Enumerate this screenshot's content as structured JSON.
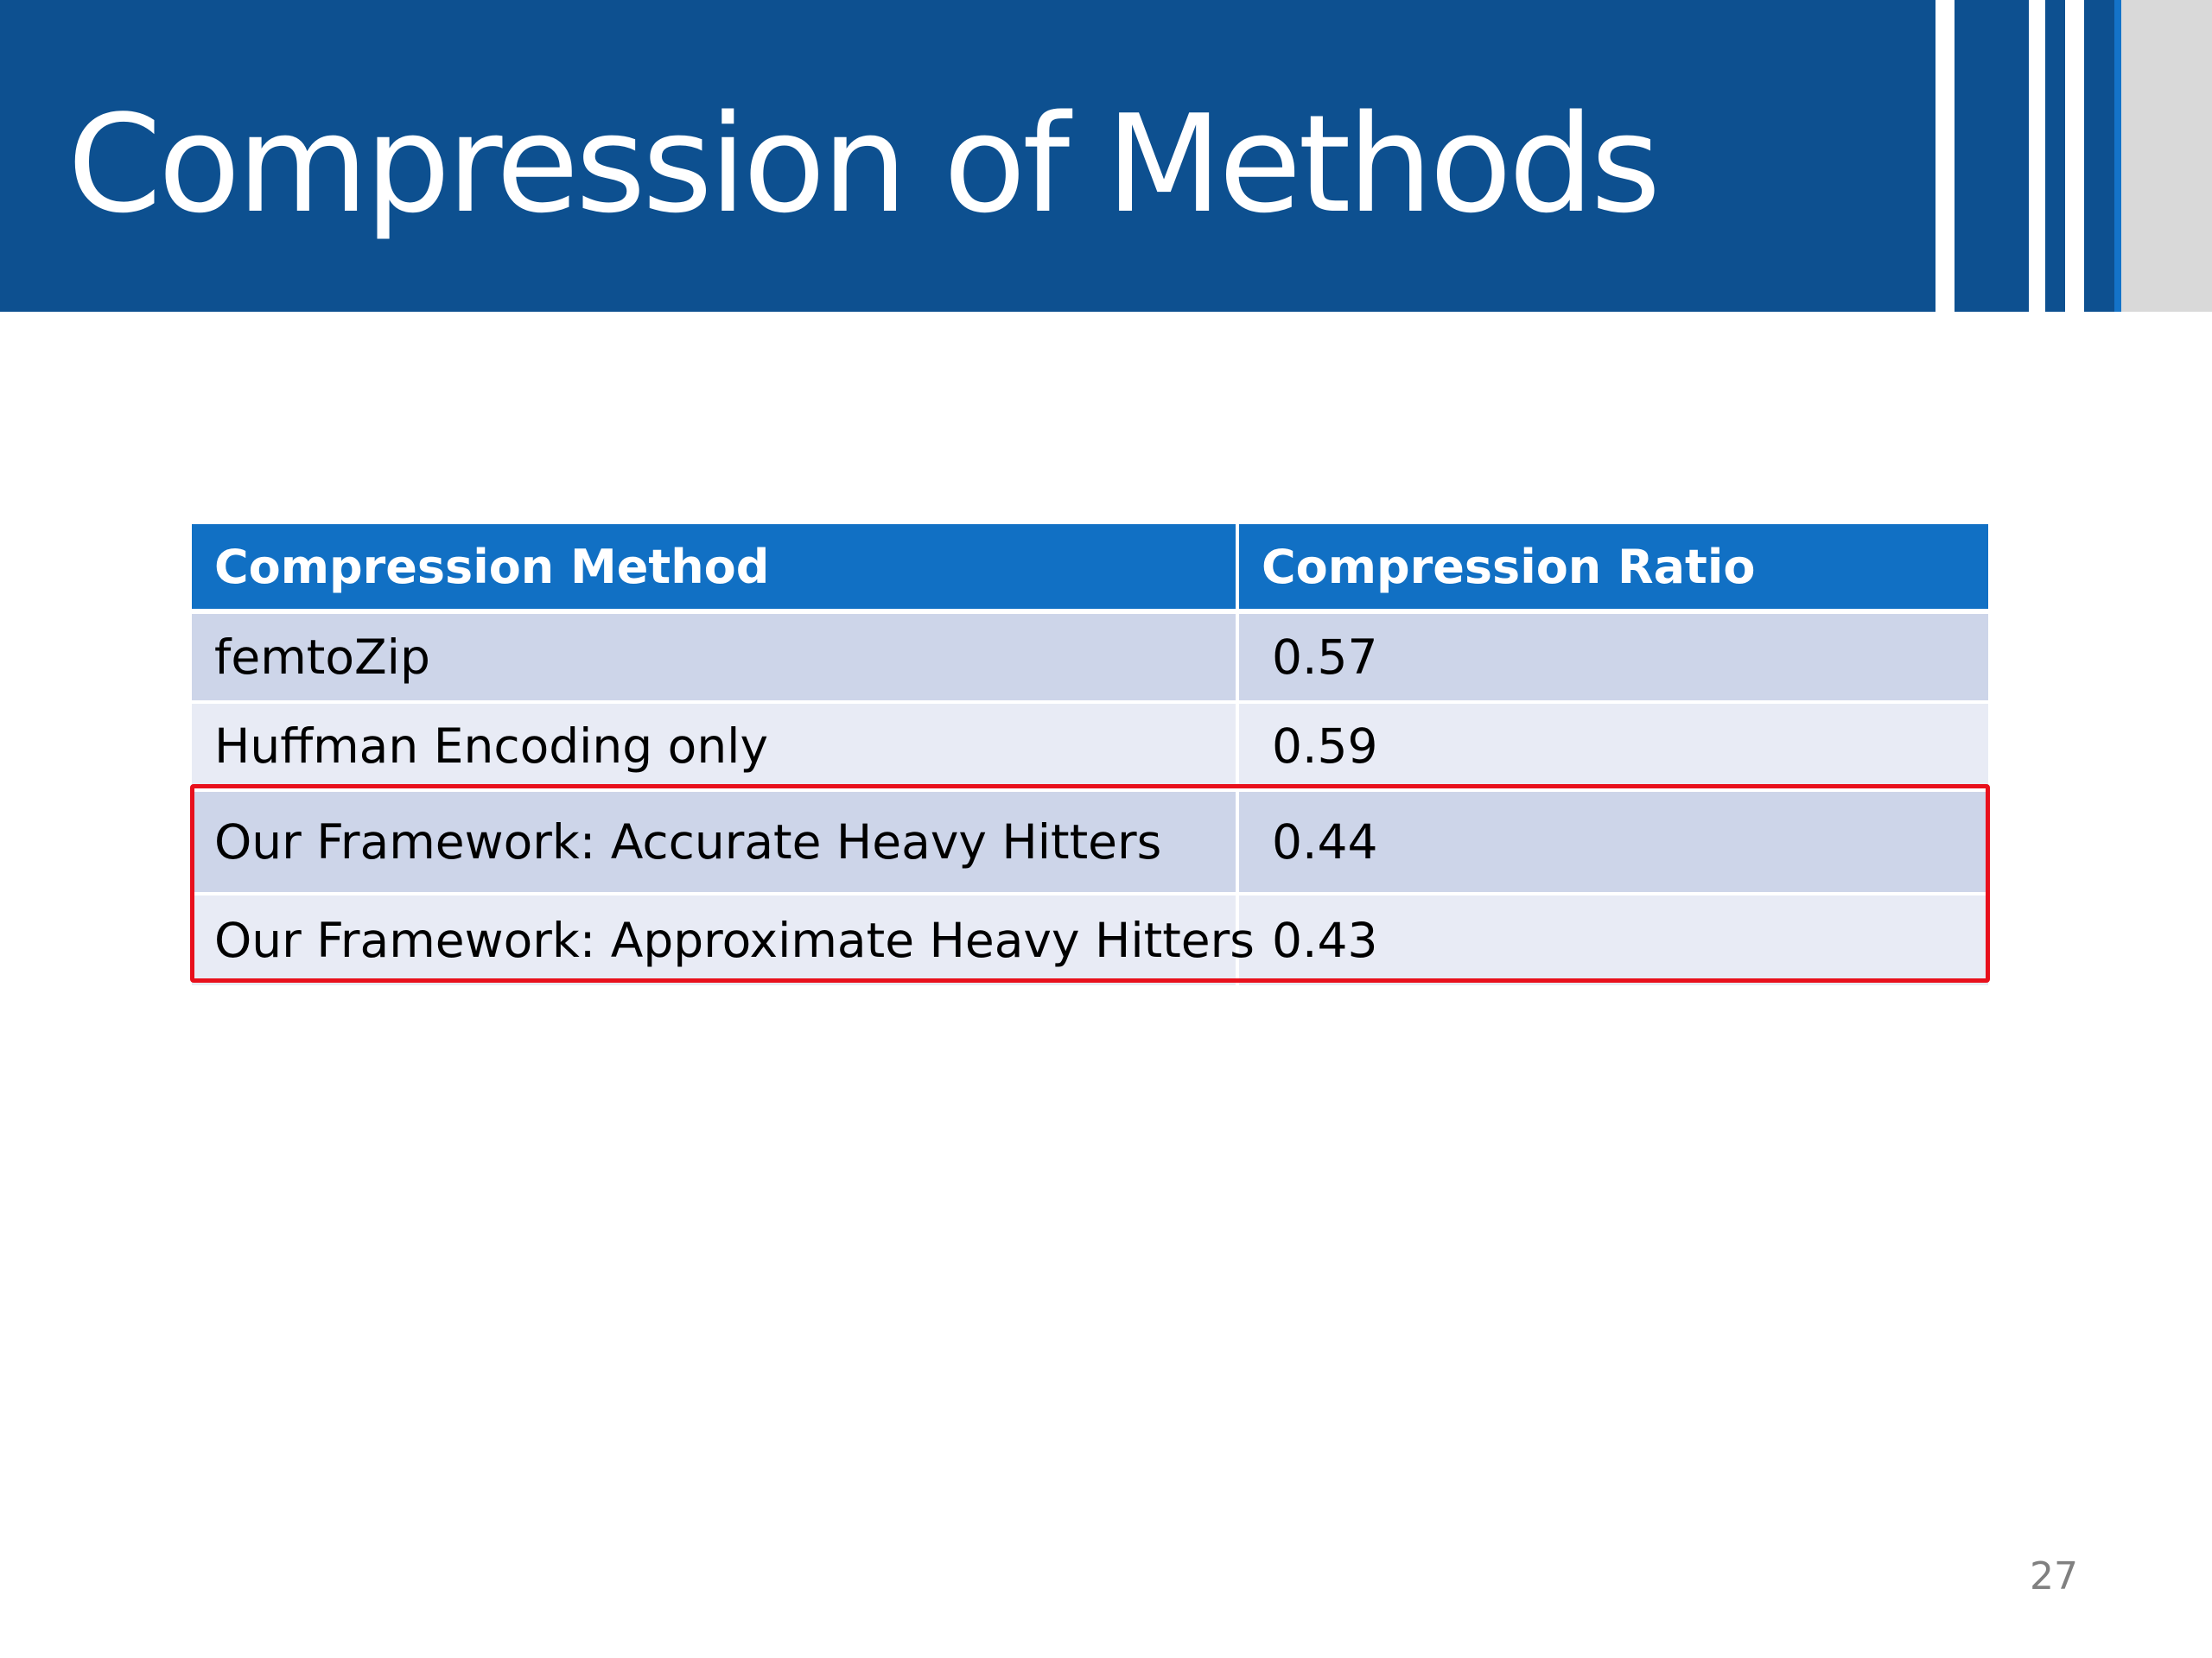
{
  "slide": {
    "title": "Compression of Methods",
    "page_number": "27"
  },
  "table": {
    "headers": [
      "Compression Method",
      "Compression Ratio"
    ],
    "rows": [
      {
        "method": "femtoZip",
        "ratio": "0.57"
      },
      {
        "method": "Huffman Encoding only",
        "ratio": "0.59"
      },
      {
        "method": "Our Framework: Accurate Heavy Hitters",
        "ratio": "0.44"
      },
      {
        "method": "Our Framework: Approximate Heavy Hitters",
        "ratio": "0.43"
      }
    ]
  },
  "colors": {
    "title_bar": "#0d5090",
    "header_fill": "#1170c4",
    "row_dark": "#cdd5e9",
    "row_light": "#e8ebf5",
    "highlight_border": "#e8101c"
  }
}
